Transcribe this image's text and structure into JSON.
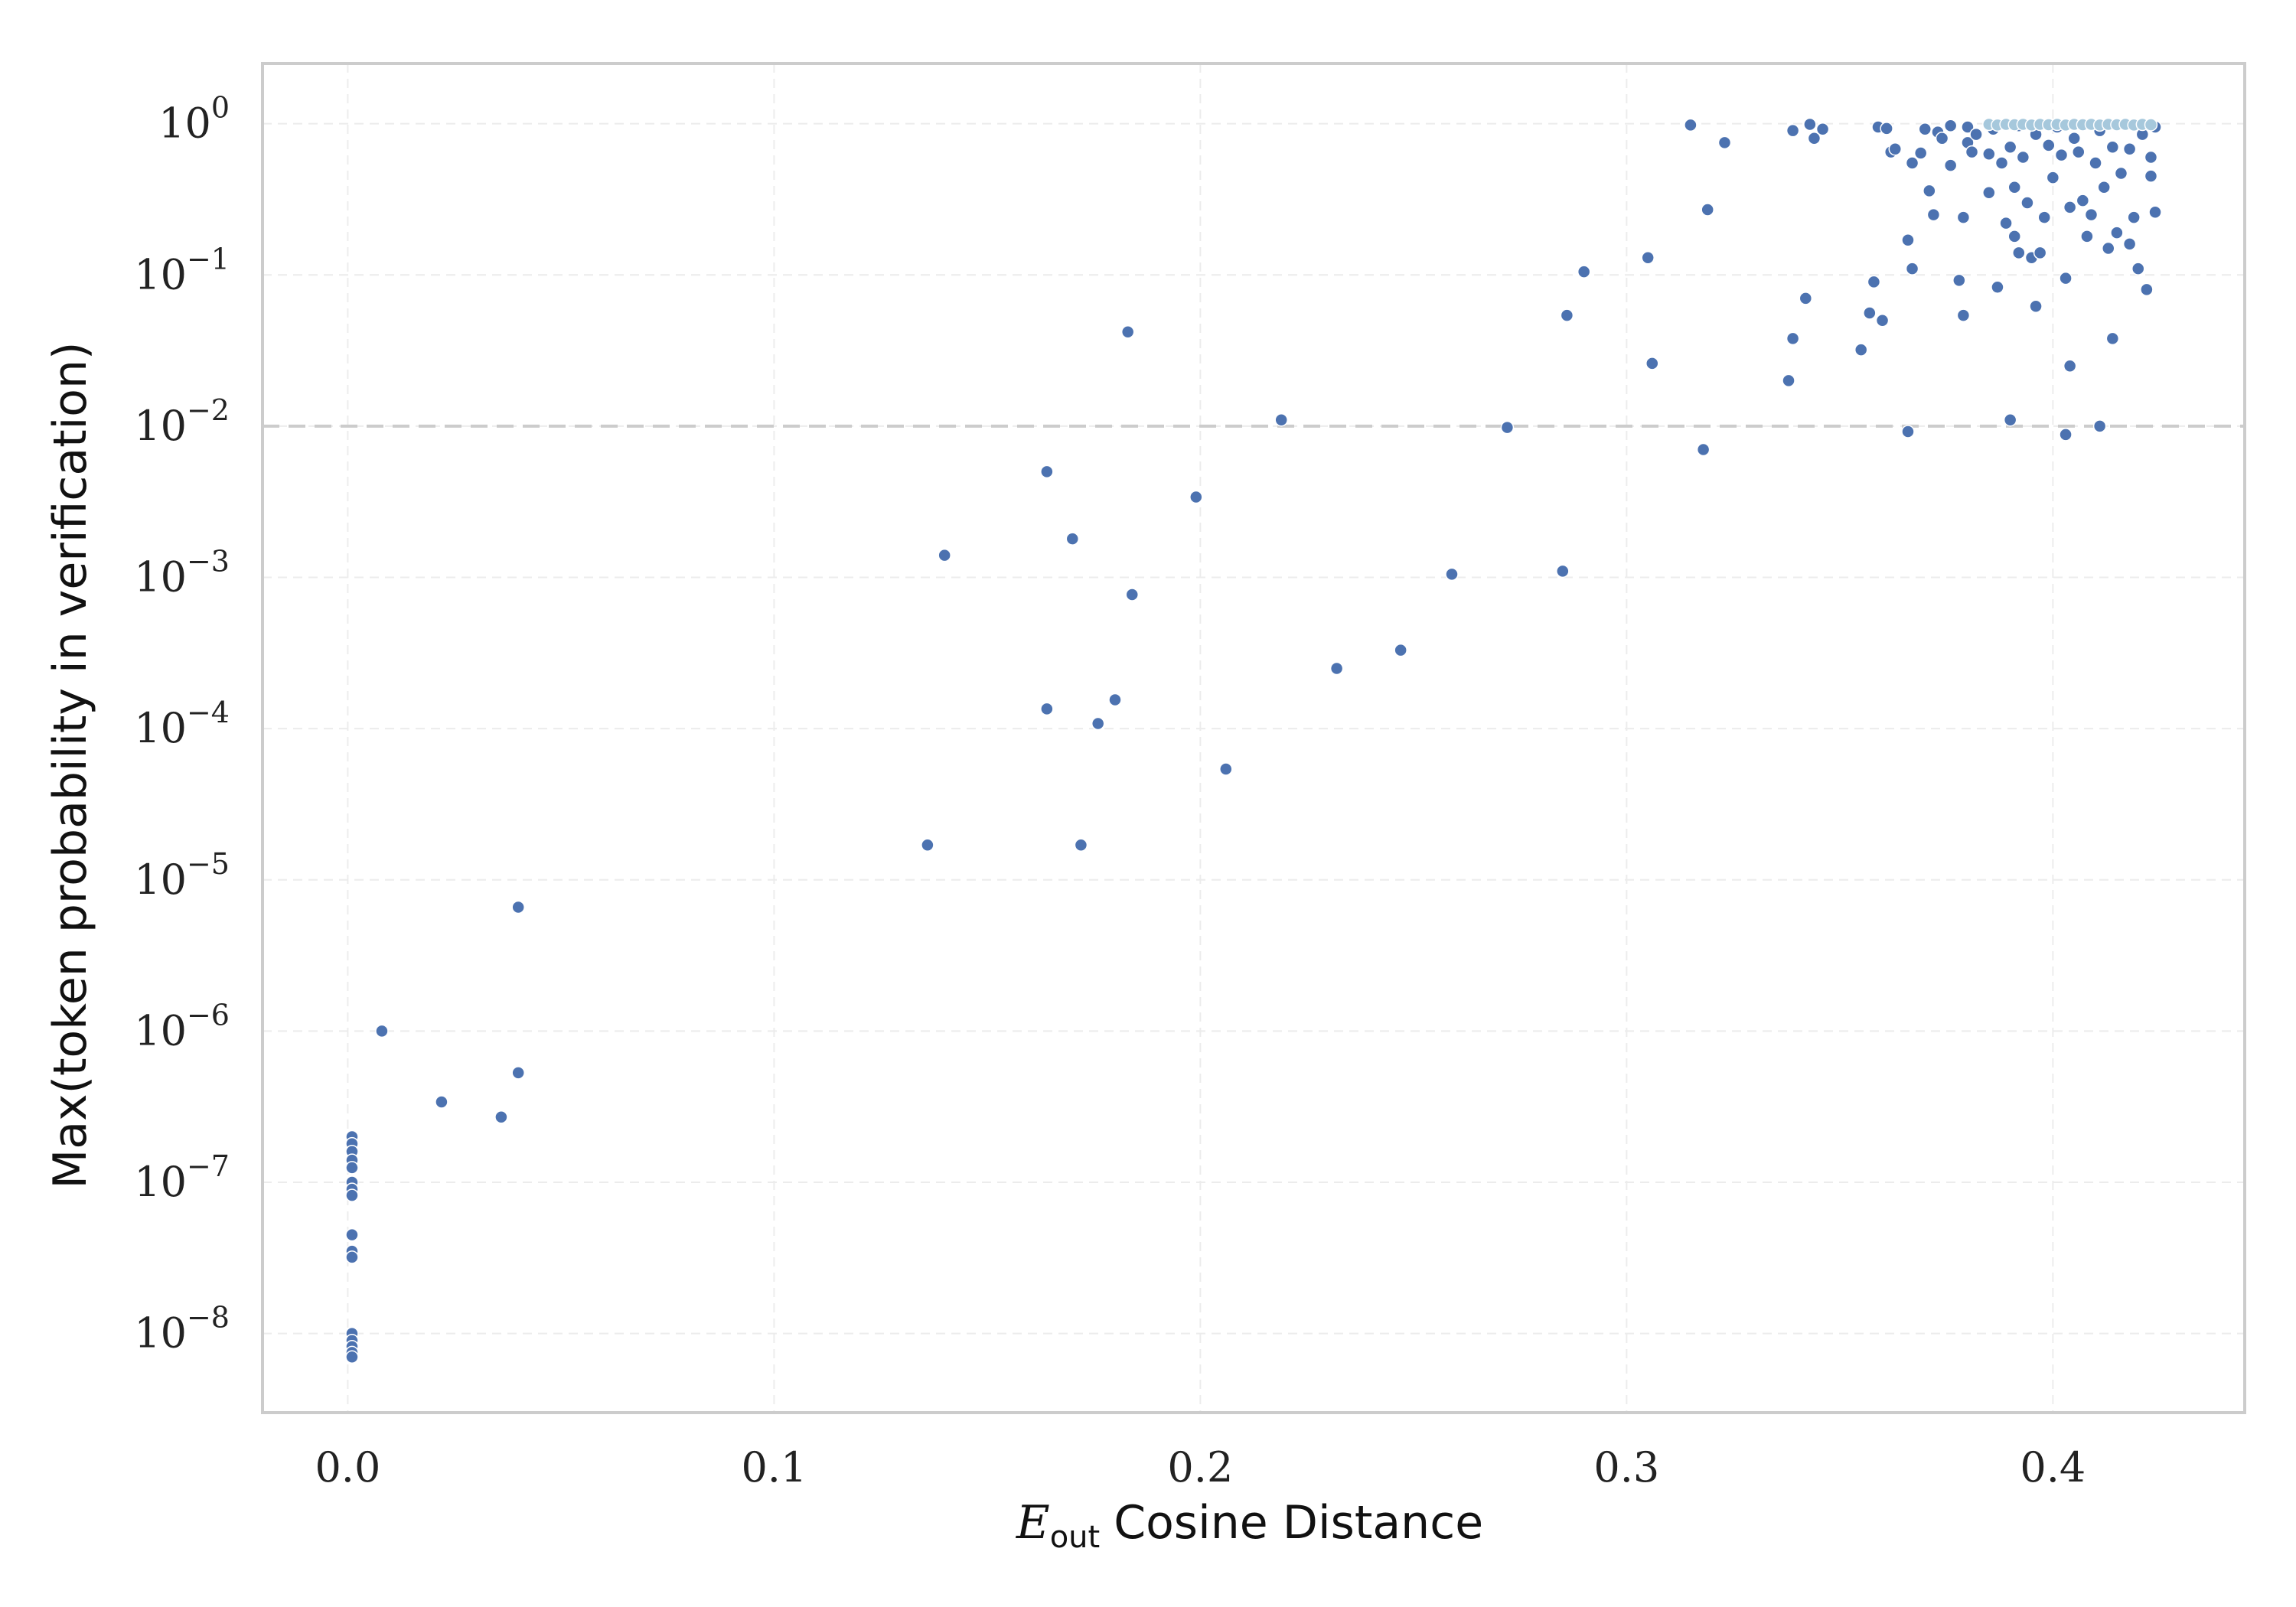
{
  "chart_data": {
    "type": "scatter",
    "title": "",
    "xlabel": {
      "symbol": "E",
      "subscript": "out",
      "text": "Cosine Distance"
    },
    "ylabel": "Max(token probability in verification)",
    "yscale": "log",
    "xlim": [
      -0.02,
      0.445
    ],
    "ylim": [
      3e-09,
      2.5
    ],
    "x_ticks": [
      {
        "value": 0.0,
        "label": "0.0"
      },
      {
        "value": 0.1,
        "label": "0.1"
      },
      {
        "value": 0.2,
        "label": "0.2"
      },
      {
        "value": 0.3,
        "label": "0.3"
      },
      {
        "value": 0.4,
        "label": "0.4"
      }
    ],
    "y_ticks": [
      {
        "value": 1e-08,
        "base": "10",
        "exp": "−8"
      },
      {
        "value": 1e-07,
        "base": "10",
        "exp": "−7"
      },
      {
        "value": 1e-06,
        "base": "10",
        "exp": "−6"
      },
      {
        "value": 1e-05,
        "base": "10",
        "exp": "−5"
      },
      {
        "value": 0.0001,
        "base": "10",
        "exp": "−4"
      },
      {
        "value": 0.001,
        "base": "10",
        "exp": "−3"
      },
      {
        "value": 0.01,
        "base": "10",
        "exp": "−2"
      },
      {
        "value": 0.1,
        "base": "10",
        "exp": "−1"
      },
      {
        "value": 1,
        "base": "10",
        "exp": "0"
      }
    ],
    "reference_line": {
      "y": 0.01,
      "color": "#cccccc",
      "style": "dashed"
    },
    "grid": true,
    "colors": {
      "points": "#4c72b0",
      "dense_points": "#a6c8dc",
      "frame": "#cccccc"
    },
    "series": [
      {
        "color": "#4c72b0",
        "points": [
          [
            0.001,
            2e-07
          ],
          [
            0.001,
            1.8e-07
          ],
          [
            0.001,
            1.6e-07
          ],
          [
            0.001,
            1.4e-07
          ],
          [
            0.001,
            1.25e-07
          ],
          [
            0.001,
            1e-07
          ],
          [
            0.001,
            9e-08
          ],
          [
            0.001,
            8.2e-08
          ],
          [
            0.001,
            4.5e-08
          ],
          [
            0.001,
            3.5e-08
          ],
          [
            0.001,
            3.2e-08
          ],
          [
            0.001,
            1e-08
          ],
          [
            0.001,
            9e-09
          ],
          [
            0.001,
            8.2e-09
          ],
          [
            0.001,
            7.5e-09
          ],
          [
            0.001,
            7e-09
          ],
          [
            0.008,
            1e-06
          ],
          [
            0.022,
            3.4e-07
          ],
          [
            0.036,
            2.7e-07
          ],
          [
            0.04,
            5.3e-07
          ],
          [
            0.04,
            6.6e-06
          ],
          [
            0.136,
            1.7e-05
          ],
          [
            0.14,
            0.0014
          ],
          [
            0.164,
            0.005
          ],
          [
            0.164,
            0.000135
          ],
          [
            0.17,
            0.0018
          ],
          [
            0.172,
            1.7e-05
          ],
          [
            0.176,
            0.000108
          ],
          [
            0.18,
            0.000155
          ],
          [
            0.183,
            0.042
          ],
          [
            0.184,
            0.00077
          ],
          [
            0.199,
            0.0034
          ],
          [
            0.206,
            5.4e-05
          ],
          [
            0.219,
            0.011
          ],
          [
            0.232,
            0.00025
          ],
          [
            0.247,
            0.00033
          ],
          [
            0.259,
            0.00105
          ],
          [
            0.272,
            0.0098
          ],
          [
            0.285,
            0.0011
          ],
          [
            0.286,
            0.054
          ],
          [
            0.29,
            0.105
          ],
          [
            0.305,
            0.13
          ],
          [
            0.306,
            0.026
          ],
          [
            0.315,
            0.98
          ],
          [
            0.318,
            0.007
          ],
          [
            0.319,
            0.27
          ],
          [
            0.323,
            0.75
          ],
          [
            0.338,
            0.02
          ],
          [
            0.339,
            0.038
          ],
          [
            0.339,
            0.9
          ],
          [
            0.342,
            0.07
          ],
          [
            0.343,
            0.99
          ],
          [
            0.344,
            0.8
          ],
          [
            0.346,
            0.92
          ],
          [
            0.355,
            0.032
          ],
          [
            0.357,
            0.056
          ],
          [
            0.358,
            0.09
          ],
          [
            0.359,
            0.95
          ],
          [
            0.36,
            0.05
          ],
          [
            0.361,
            0.93
          ],
          [
            0.362,
            0.65
          ],
          [
            0.363,
            0.68
          ],
          [
            0.366,
            0.0092
          ],
          [
            0.366,
            0.17
          ],
          [
            0.367,
            0.11
          ],
          [
            0.367,
            0.55
          ],
          [
            0.369,
            0.64
          ],
          [
            0.37,
            0.92
          ],
          [
            0.371,
            0.36
          ],
          [
            0.372,
            0.25
          ],
          [
            0.373,
            0.88
          ],
          [
            0.374,
            0.8
          ],
          [
            0.376,
            0.53
          ],
          [
            0.376,
            0.97
          ],
          [
            0.378,
            0.092
          ],
          [
            0.379,
            0.054
          ],
          [
            0.379,
            0.24
          ],
          [
            0.38,
            0.75
          ],
          [
            0.38,
            0.95
          ],
          [
            0.381,
            0.65
          ],
          [
            0.382,
            0.85
          ],
          [
            0.385,
            0.35
          ],
          [
            0.385,
            0.63
          ],
          [
            0.386,
            0.92
          ],
          [
            0.387,
            0.083
          ],
          [
            0.388,
            0.55
          ],
          [
            0.389,
            0.22
          ],
          [
            0.39,
            0.011
          ],
          [
            0.39,
            0.7
          ],
          [
            0.391,
            0.18
          ],
          [
            0.391,
            0.38
          ],
          [
            0.392,
            0.14
          ],
          [
            0.392,
            0.97
          ],
          [
            0.393,
            0.6
          ],
          [
            0.394,
            0.3
          ],
          [
            0.395,
            0.13
          ],
          [
            0.396,
            0.85
          ],
          [
            0.396,
            0.062
          ],
          [
            0.397,
            0.14
          ],
          [
            0.398,
            0.24
          ],
          [
            0.399,
            0.72
          ],
          [
            0.4,
            0.44
          ],
          [
            0.401,
            0.95
          ],
          [
            0.402,
            0.62
          ],
          [
            0.403,
            0.095
          ],
          [
            0.403,
            0.0088
          ],
          [
            0.404,
            0.025
          ],
          [
            0.404,
            0.28
          ],
          [
            0.405,
            0.8
          ],
          [
            0.406,
            0.65
          ],
          [
            0.407,
            0.31
          ],
          [
            0.408,
            0.18
          ],
          [
            0.409,
            0.25
          ],
          [
            0.41,
            0.55
          ],
          [
            0.411,
            0.01
          ],
          [
            0.411,
            0.9
          ],
          [
            0.412,
            0.38
          ],
          [
            0.413,
            0.15
          ],
          [
            0.414,
            0.038
          ],
          [
            0.414,
            0.7
          ],
          [
            0.415,
            0.19
          ],
          [
            0.416,
            0.47
          ],
          [
            0.417,
            0.98
          ],
          [
            0.418,
            0.16
          ],
          [
            0.418,
            0.68
          ],
          [
            0.419,
            0.24
          ],
          [
            0.42,
            0.11
          ],
          [
            0.421,
            0.85
          ],
          [
            0.422,
            0.08
          ],
          [
            0.423,
            0.45
          ],
          [
            0.423,
            0.6
          ],
          [
            0.424,
            0.26
          ],
          [
            0.424,
            0.95
          ]
        ]
      },
      {
        "color": "#a6c8dc",
        "points": [
          [
            0.385,
            0.99
          ],
          [
            0.387,
            0.98
          ],
          [
            0.389,
            0.99
          ],
          [
            0.391,
            0.985
          ],
          [
            0.393,
            0.99
          ],
          [
            0.395,
            0.98
          ],
          [
            0.397,
            0.99
          ],
          [
            0.399,
            0.985
          ],
          [
            0.401,
            0.99
          ],
          [
            0.403,
            0.98
          ],
          [
            0.405,
            0.99
          ],
          [
            0.407,
            0.985
          ],
          [
            0.409,
            0.99
          ],
          [
            0.411,
            0.98
          ],
          [
            0.413,
            0.99
          ],
          [
            0.415,
            0.985
          ],
          [
            0.417,
            0.99
          ],
          [
            0.419,
            0.98
          ],
          [
            0.421,
            0.99
          ],
          [
            0.423,
            0.985
          ]
        ]
      }
    ]
  }
}
